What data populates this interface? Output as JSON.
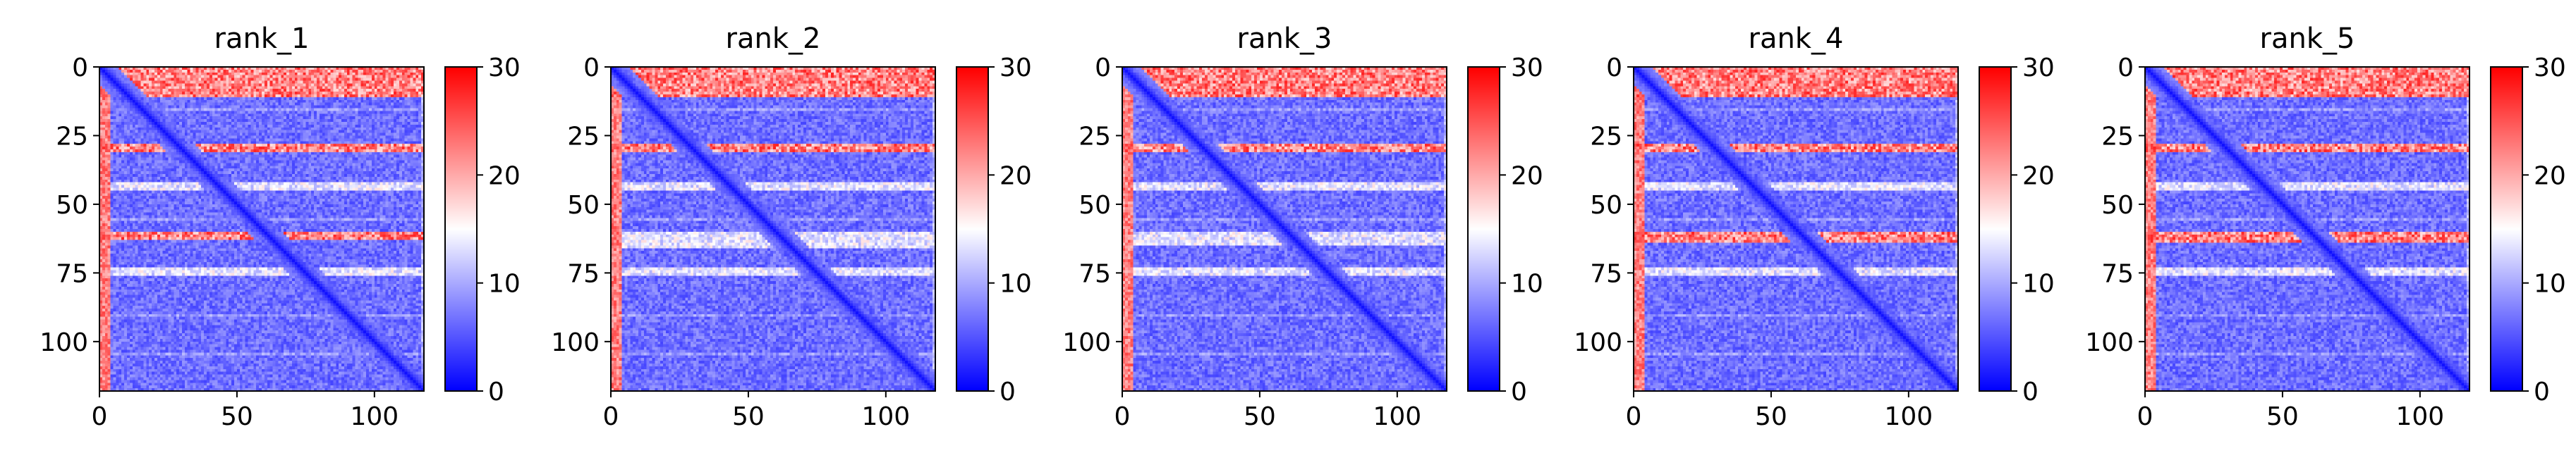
{
  "chart_data": [
    {
      "type": "heatmap",
      "title": "rank_1",
      "x_ticks": [
        "0",
        "50",
        "100"
      ],
      "y_ticks": [
        "0",
        "25",
        "50",
        "75",
        "100"
      ],
      "xlim": [
        0,
        118
      ],
      "ylim": [
        118,
        0
      ],
      "colorbar": {
        "ticks": [
          "0",
          "10",
          "20",
          "30"
        ],
        "range": [
          0,
          30
        ],
        "colormap": "bwr"
      },
      "matrix_size": 118,
      "high_rows": [
        [
          0,
          11
        ],
        [
          28,
          31
        ],
        [
          60,
          63
        ]
      ],
      "mid_rows": [
        [
          42,
          45
        ],
        [
          73,
          76
        ]
      ]
    },
    {
      "type": "heatmap",
      "title": "rank_2",
      "x_ticks": [
        "0",
        "50",
        "100"
      ],
      "y_ticks": [
        "0",
        "25",
        "50",
        "75",
        "100"
      ],
      "xlim": [
        0,
        118
      ],
      "ylim": [
        118,
        0
      ],
      "colorbar": {
        "ticks": [
          "0",
          "10",
          "20",
          "30"
        ],
        "range": [
          0,
          30
        ],
        "colormap": "bwr"
      },
      "matrix_size": 118,
      "high_rows": [
        [
          0,
          11
        ],
        [
          28,
          31
        ]
      ],
      "mid_rows": [
        [
          42,
          45
        ],
        [
          60,
          66
        ],
        [
          73,
          76
        ]
      ]
    },
    {
      "type": "heatmap",
      "title": "rank_3",
      "x_ticks": [
        "0",
        "50",
        "100"
      ],
      "y_ticks": [
        "0",
        "25",
        "50",
        "75",
        "100"
      ],
      "xlim": [
        0,
        118
      ],
      "ylim": [
        118,
        0
      ],
      "colorbar": {
        "ticks": [
          "0",
          "10",
          "20",
          "30"
        ],
        "range": [
          0,
          30
        ],
        "colormap": "bwr"
      },
      "matrix_size": 118,
      "high_rows": [
        [
          0,
          11
        ],
        [
          28,
          31
        ]
      ],
      "mid_rows": [
        [
          42,
          45
        ],
        [
          60,
          65
        ],
        [
          73,
          76
        ]
      ]
    },
    {
      "type": "heatmap",
      "title": "rank_4",
      "x_ticks": [
        "0",
        "50",
        "100"
      ],
      "y_ticks": [
        "0",
        "25",
        "50",
        "75",
        "100"
      ],
      "xlim": [
        0,
        118
      ],
      "ylim": [
        118,
        0
      ],
      "colorbar": {
        "ticks": [
          "0",
          "10",
          "20",
          "30"
        ],
        "range": [
          0,
          30
        ],
        "colormap": "bwr"
      },
      "matrix_size": 118,
      "high_rows": [
        [
          0,
          11
        ],
        [
          28,
          31
        ],
        [
          60,
          64
        ]
      ],
      "mid_rows": [
        [
          42,
          45
        ],
        [
          73,
          76
        ]
      ]
    },
    {
      "type": "heatmap",
      "title": "rank_5",
      "x_ticks": [
        "0",
        "50",
        "100"
      ],
      "y_ticks": [
        "0",
        "25",
        "50",
        "75",
        "100"
      ],
      "xlim": [
        0,
        118
      ],
      "ylim": [
        118,
        0
      ],
      "colorbar": {
        "ticks": [
          "0",
          "10",
          "20",
          "30"
        ],
        "range": [
          0,
          30
        ],
        "colormap": "bwr"
      },
      "matrix_size": 118,
      "high_rows": [
        [
          0,
          11
        ],
        [
          28,
          31
        ],
        [
          60,
          64
        ]
      ],
      "mid_rows": [
        [
          42,
          45
        ],
        [
          73,
          76
        ]
      ]
    }
  ]
}
